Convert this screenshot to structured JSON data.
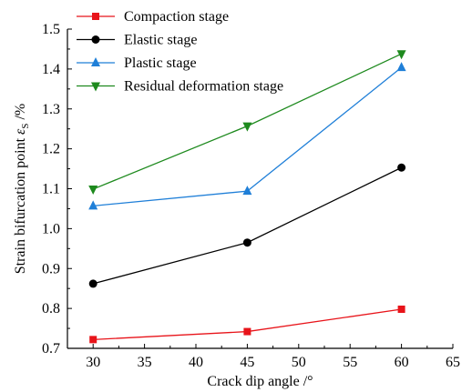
{
  "chart_data": {
    "type": "line",
    "title": "",
    "xlabel": "Crack dip angle /°",
    "ylabel_main": "Strain bifurcation point ",
    "ylabel_symbol": "ε",
    "ylabel_subscript": "S",
    "ylabel_unit": " /%",
    "xlim": [
      27.5,
      65
    ],
    "ylim": [
      0.7,
      1.5
    ],
    "x_ticks": [
      30,
      35,
      40,
      45,
      50,
      55,
      60,
      65
    ],
    "y_ticks": [
      0.7,
      0.8,
      0.9,
      1.0,
      1.1,
      1.2,
      1.3,
      1.4,
      1.5
    ],
    "x_tick_labels": [
      "30",
      "35",
      "40",
      "45",
      "50",
      "55",
      "60",
      "65"
    ],
    "y_tick_labels": [
      "0.7",
      "0.8",
      "0.9",
      "1.0",
      "1.1",
      "1.2",
      "1.3",
      "1.4",
      "1.5"
    ],
    "x": [
      30,
      45,
      60
    ],
    "legend_position": "top-left",
    "series": [
      {
        "name": "Compaction stage",
        "values": [
          0.722,
          0.742,
          0.798
        ],
        "color": "#e8141a",
        "marker": "square"
      },
      {
        "name": "Elastic stage",
        "values": [
          0.862,
          0.965,
          1.153
        ],
        "color": "#000000",
        "marker": "circle"
      },
      {
        "name": "Plastic stage",
        "values": [
          1.057,
          1.094,
          1.404
        ],
        "color": "#1f7fd8",
        "marker": "triangle-up"
      },
      {
        "name": "Residual deformation stage",
        "values": [
          1.099,
          1.257,
          1.438
        ],
        "color": "#1e8a1e",
        "marker": "triangle-down"
      }
    ]
  }
}
